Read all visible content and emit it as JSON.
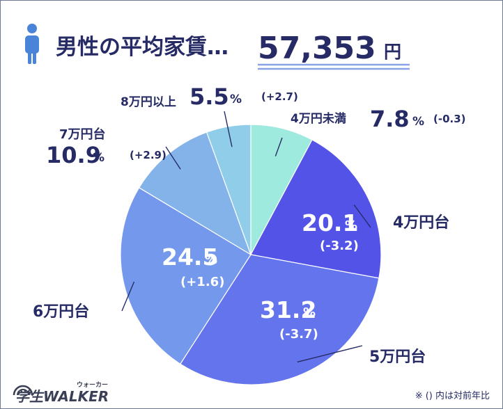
{
  "header": {
    "title": "男性の平均家賃…",
    "value": "57,353",
    "unit": "円"
  },
  "footnote": "※ () 内は対前年比",
  "logo": {
    "text": "学生WALKER",
    "ruby": "ウォーカー"
  },
  "colors": {
    "text": "#262b66",
    "underline": "#8aa3e6",
    "person": "#4a84d8",
    "slice_labels": "#ffffff"
  },
  "chart_data": {
    "type": "pie",
    "title": "男性の平均家賃…57,353円",
    "slices": [
      {
        "label": "4万円未満",
        "value": 7.8,
        "value_text": "7.8",
        "change": "(-0.3)",
        "color": "#9eeadf"
      },
      {
        "label": "4万円台",
        "value": 20.1,
        "value_text": "20.1",
        "change": "(-3.2)",
        "color": "#5353e8"
      },
      {
        "label": "5万円台",
        "value": 31.2,
        "value_text": "31.2",
        "change": "(-3.7)",
        "color": "#6474ec"
      },
      {
        "label": "6万円台",
        "value": 24.5,
        "value_text": "24.5",
        "change": "(+1.6)",
        "color": "#7498ec"
      },
      {
        "label": "7万円台",
        "value": 10.9,
        "value_text": "10.9",
        "change": "(+2.9)",
        "color": "#84b3ea"
      },
      {
        "label": "8万円以上",
        "value": 5.5,
        "value_text": "5.5",
        "change": "(+2.7)",
        "color": "#90cde8"
      }
    ],
    "percent_sign": "%"
  }
}
